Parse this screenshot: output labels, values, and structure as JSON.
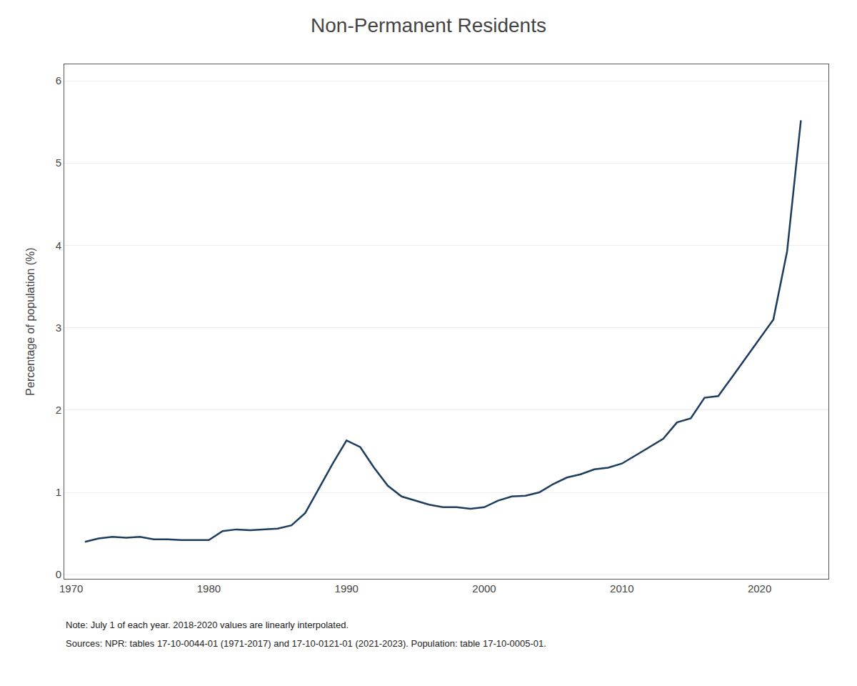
{
  "chart_data": {
    "type": "line",
    "title": "Non-Permanent Residents",
    "ylabel": "Percentage of population (%)",
    "annotations": [
      "Note: July 1 of each year. 2018-2020 values are linearly interpolated.",
      "Sources: NPR: tables 17-10-0044-01 (1971-2017) and 17-10-0121-01 (2021-2023). Population: table 17-10-0005-01."
    ],
    "x": [
      1971,
      1972,
      1973,
      1974,
      1975,
      1976,
      1977,
      1978,
      1979,
      1980,
      1981,
      1982,
      1983,
      1984,
      1985,
      1986,
      1987,
      1988,
      1989,
      1990,
      1991,
      1992,
      1993,
      1994,
      1995,
      1996,
      1997,
      1998,
      1999,
      2000,
      2001,
      2002,
      2003,
      2004,
      2005,
      2006,
      2007,
      2008,
      2009,
      2010,
      2011,
      2012,
      2013,
      2014,
      2015,
      2016,
      2017,
      2018,
      2019,
      2020,
      2021,
      2022,
      2023
    ],
    "values": [
      0.4,
      0.44,
      0.46,
      0.45,
      0.46,
      0.43,
      0.43,
      0.42,
      0.42,
      0.42,
      0.53,
      0.55,
      0.54,
      0.55,
      0.56,
      0.6,
      0.75,
      1.05,
      1.35,
      1.63,
      1.55,
      1.3,
      1.08,
      0.95,
      0.9,
      0.85,
      0.82,
      0.82,
      0.8,
      0.82,
      0.9,
      0.95,
      0.96,
      1.0,
      1.1,
      1.18,
      1.22,
      1.28,
      1.3,
      1.35,
      1.45,
      1.55,
      1.65,
      1.85,
      1.9,
      2.15,
      2.17,
      2.4,
      2.63,
      2.86,
      3.1,
      3.93,
      5.52
    ],
    "color": "#1d3d5f",
    "xlim": [
      1969.5,
      2025
    ],
    "ylim": [
      -0.05,
      6.2
    ],
    "xticks": [
      1970,
      1980,
      1990,
      2000,
      2010,
      2020
    ],
    "yticks": [
      0,
      1,
      2,
      3,
      4,
      5,
      6
    ],
    "grid": "y"
  }
}
